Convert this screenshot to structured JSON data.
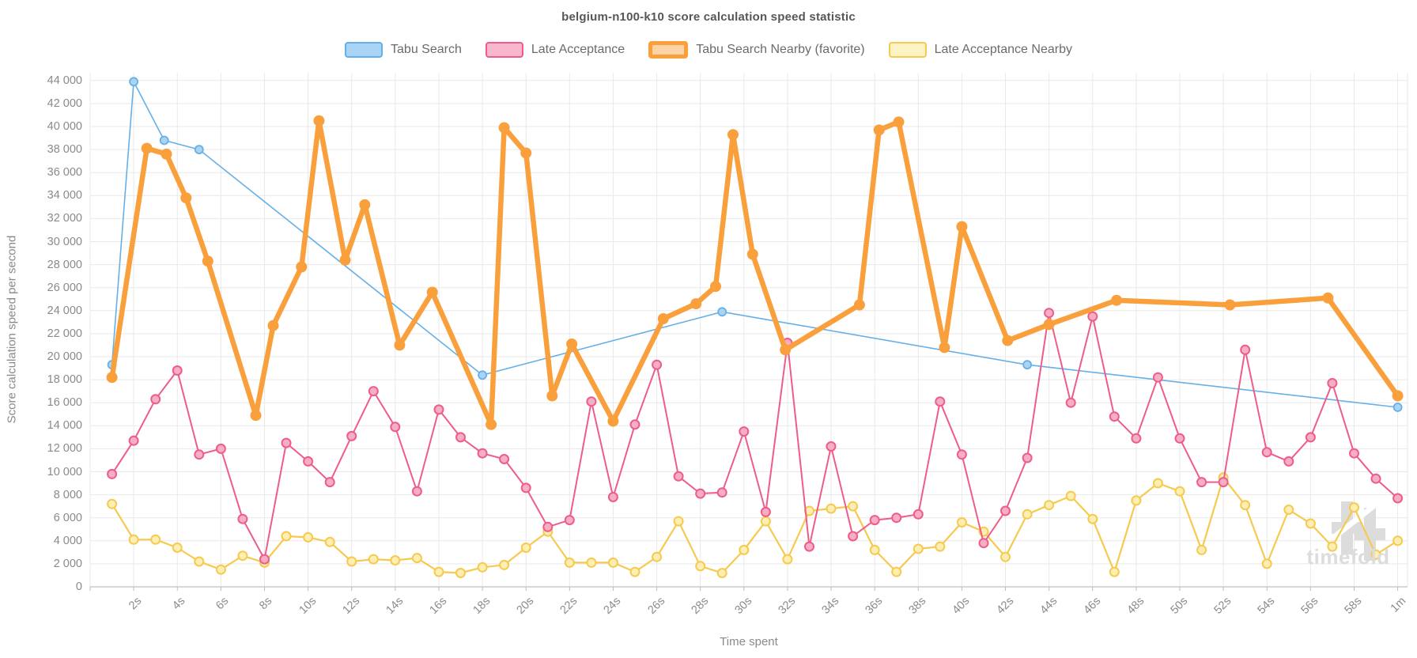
{
  "title": "belgium-n100-k10 score calculation speed statistic",
  "axes": {
    "y_title": "Score calculation speed per second",
    "x_title": "Time spent",
    "y_min": 0,
    "y_max": 44000,
    "y_tick_step": 2000,
    "x_tick_labels": [
      "2s",
      "4s",
      "6s",
      "8s",
      "10s",
      "12s",
      "14s",
      "16s",
      "18s",
      "20s",
      "22s",
      "24s",
      "26s",
      "28s",
      "30s",
      "32s",
      "34s",
      "36s",
      "38s",
      "40s",
      "42s",
      "44s",
      "46s",
      "48s",
      "50s",
      "52s",
      "54s",
      "56s",
      "58s",
      "1m"
    ],
    "x_tick_seconds": [
      2,
      4,
      6,
      8,
      10,
      12,
      14,
      16,
      18,
      20,
      22,
      24,
      26,
      28,
      30,
      32,
      34,
      36,
      38,
      40,
      42,
      44,
      46,
      48,
      50,
      52,
      54,
      56,
      58,
      60
    ],
    "grid_on": true
  },
  "watermark": {
    "text": "timefold"
  },
  "colors": {
    "grid": "#e9e9e9",
    "axis_line": "#cccccc",
    "tick": "#bbbbbb",
    "watermark": "#dcdcdc"
  },
  "chart_data": {
    "type": "line",
    "title": "belgium-n100-k10 score calculation speed statistic",
    "xlabel": "Time spent",
    "ylabel": "Score calculation speed per second",
    "ylim": [
      0,
      44000
    ],
    "xlim_seconds": [
      0,
      60.5
    ],
    "legend_position": "top",
    "series": [
      {
        "name": "Tabu Search",
        "line_color": "#64b0e8",
        "marker_fill": "#abd4f3",
        "line_width": 1.6,
        "marker_r": 5,
        "marker_stroke": 1.8,
        "swatch_fill": "#a9d4f5",
        "swatch_border": "#64b0e8",
        "favorite": false,
        "points": [
          [
            1,
            19300
          ],
          [
            2,
            43900
          ],
          [
            3.4,
            38800
          ],
          [
            5,
            38000
          ],
          [
            18,
            18400
          ],
          [
            29,
            23900
          ],
          [
            43,
            19300
          ],
          [
            60,
            15600
          ]
        ]
      },
      {
        "name": "Late Acceptance",
        "line_color": "#ee5c8a",
        "marker_fill": "#f6aec5",
        "line_width": 2,
        "marker_r": 5.5,
        "marker_stroke": 2,
        "swatch_fill": "#f8b7cd",
        "swatch_border": "#ee5c8a",
        "favorite": false,
        "points": [
          [
            1,
            9800
          ],
          [
            2,
            12700
          ],
          [
            3,
            16300
          ],
          [
            4,
            18800
          ],
          [
            5,
            11500
          ],
          [
            6,
            12000
          ],
          [
            7,
            5900
          ],
          [
            8,
            2400
          ],
          [
            9,
            12500
          ],
          [
            10,
            10900
          ],
          [
            11,
            9100
          ],
          [
            12,
            13100
          ],
          [
            13,
            17000
          ],
          [
            14,
            13900
          ],
          [
            15,
            8300
          ],
          [
            16,
            15400
          ],
          [
            17,
            13000
          ],
          [
            18,
            11600
          ],
          [
            19,
            11100
          ],
          [
            20,
            8600
          ],
          [
            21,
            5200
          ],
          [
            22,
            5800
          ],
          [
            23,
            16100
          ],
          [
            24,
            7800
          ],
          [
            25,
            14100
          ],
          [
            26,
            19300
          ],
          [
            27,
            9600
          ],
          [
            28,
            8100
          ],
          [
            29,
            8200
          ],
          [
            30,
            13500
          ],
          [
            31,
            6500
          ],
          [
            32,
            21200
          ],
          [
            33,
            3500
          ],
          [
            34,
            12200
          ],
          [
            35,
            4400
          ],
          [
            36,
            5800
          ],
          [
            37,
            6000
          ],
          [
            38,
            6300
          ],
          [
            39,
            16100
          ],
          [
            40,
            11500
          ],
          [
            41,
            3800
          ],
          [
            42,
            6600
          ],
          [
            43,
            11200
          ],
          [
            44,
            23800
          ],
          [
            45,
            16000
          ],
          [
            46,
            23500
          ],
          [
            47,
            14800
          ],
          [
            48,
            12900
          ],
          [
            49,
            18200
          ],
          [
            50,
            12900
          ],
          [
            51,
            9100
          ],
          [
            52,
            9100
          ],
          [
            53,
            20600
          ],
          [
            54,
            11700
          ],
          [
            55,
            10900
          ],
          [
            56,
            13000
          ],
          [
            57,
            17700
          ],
          [
            58,
            11600
          ],
          [
            59,
            9400
          ],
          [
            60,
            7700
          ]
        ]
      },
      {
        "name": "Tabu Search Nearby (favorite)",
        "line_color": "#f9a03c",
        "marker_fill": "#f9a03c",
        "line_width": 6.5,
        "marker_r": 7,
        "marker_stroke": 0,
        "swatch_fill": "#fbd3a6",
        "swatch_border": "#f9a03c",
        "favorite": true,
        "points": [
          [
            1,
            18200
          ],
          [
            2.6,
            38100
          ],
          [
            3.5,
            37600
          ],
          [
            4.4,
            33800
          ],
          [
            5.4,
            28300
          ],
          [
            7.6,
            14900
          ],
          [
            8.4,
            22700
          ],
          [
            9.7,
            27800
          ],
          [
            10.5,
            40500
          ],
          [
            11.7,
            28400
          ],
          [
            12.6,
            33200
          ],
          [
            14.2,
            21000
          ],
          [
            15.7,
            25600
          ],
          [
            18.4,
            14100
          ],
          [
            19,
            39900
          ],
          [
            20,
            37700
          ],
          [
            21.2,
            16600
          ],
          [
            22.1,
            21100
          ],
          [
            24,
            14400
          ],
          [
            26.3,
            23300
          ],
          [
            27.8,
            24600
          ],
          [
            28.7,
            26100
          ],
          [
            29.5,
            39300
          ],
          [
            30.4,
            28900
          ],
          [
            31.9,
            20600
          ],
          [
            35.3,
            24500
          ],
          [
            36.2,
            39700
          ],
          [
            37.1,
            40400
          ],
          [
            39.2,
            20800
          ],
          [
            40,
            31300
          ],
          [
            42.1,
            21400
          ],
          [
            44,
            22800
          ],
          [
            47.1,
            24900
          ],
          [
            52.3,
            24500
          ],
          [
            56.8,
            25100
          ],
          [
            60,
            16600
          ]
        ]
      },
      {
        "name": "Late Acceptance Nearby",
        "line_color": "#f6ca4f",
        "marker_fill": "#fdeeb3",
        "line_width": 2.2,
        "marker_r": 5.5,
        "marker_stroke": 2,
        "swatch_fill": "#fdf2c4",
        "swatch_border": "#f6ca4f",
        "favorite": false,
        "points": [
          [
            1,
            7200
          ],
          [
            2,
            4100
          ],
          [
            3,
            4100
          ],
          [
            4,
            3400
          ],
          [
            5,
            2200
          ],
          [
            6,
            1500
          ],
          [
            7,
            2700
          ],
          [
            8,
            2100
          ],
          [
            9,
            4400
          ],
          [
            10,
            4300
          ],
          [
            11,
            3900
          ],
          [
            12,
            2200
          ],
          [
            13,
            2400
          ],
          [
            14,
            2300
          ],
          [
            15,
            2500
          ],
          [
            16,
            1300
          ],
          [
            17,
            1200
          ],
          [
            18,
            1700
          ],
          [
            19,
            1900
          ],
          [
            20,
            3400
          ],
          [
            21,
            4800
          ],
          [
            22,
            2100
          ],
          [
            23,
            2100
          ],
          [
            24,
            2100
          ],
          [
            25,
            1300
          ],
          [
            26,
            2600
          ],
          [
            27,
            5700
          ],
          [
            28,
            1800
          ],
          [
            29,
            1200
          ],
          [
            30,
            3200
          ],
          [
            31,
            5700
          ],
          [
            32,
            2400
          ],
          [
            33,
            6600
          ],
          [
            34,
            6800
          ],
          [
            35,
            7000
          ],
          [
            36,
            3200
          ],
          [
            37,
            1300
          ],
          [
            38,
            3300
          ],
          [
            39,
            3500
          ],
          [
            40,
            5600
          ],
          [
            41,
            4800
          ],
          [
            42,
            2600
          ],
          [
            43,
            6300
          ],
          [
            44,
            7100
          ],
          [
            45,
            7900
          ],
          [
            46,
            5900
          ],
          [
            47,
            1300
          ],
          [
            48,
            7500
          ],
          [
            49,
            9000
          ],
          [
            50,
            8300
          ],
          [
            51,
            3200
          ],
          [
            52,
            9500
          ],
          [
            53,
            7100
          ],
          [
            54,
            2000
          ],
          [
            55,
            6700
          ],
          [
            56,
            5500
          ],
          [
            57,
            3500
          ],
          [
            58,
            6900
          ],
          [
            59,
            2800
          ],
          [
            60,
            4000
          ]
        ]
      }
    ]
  }
}
